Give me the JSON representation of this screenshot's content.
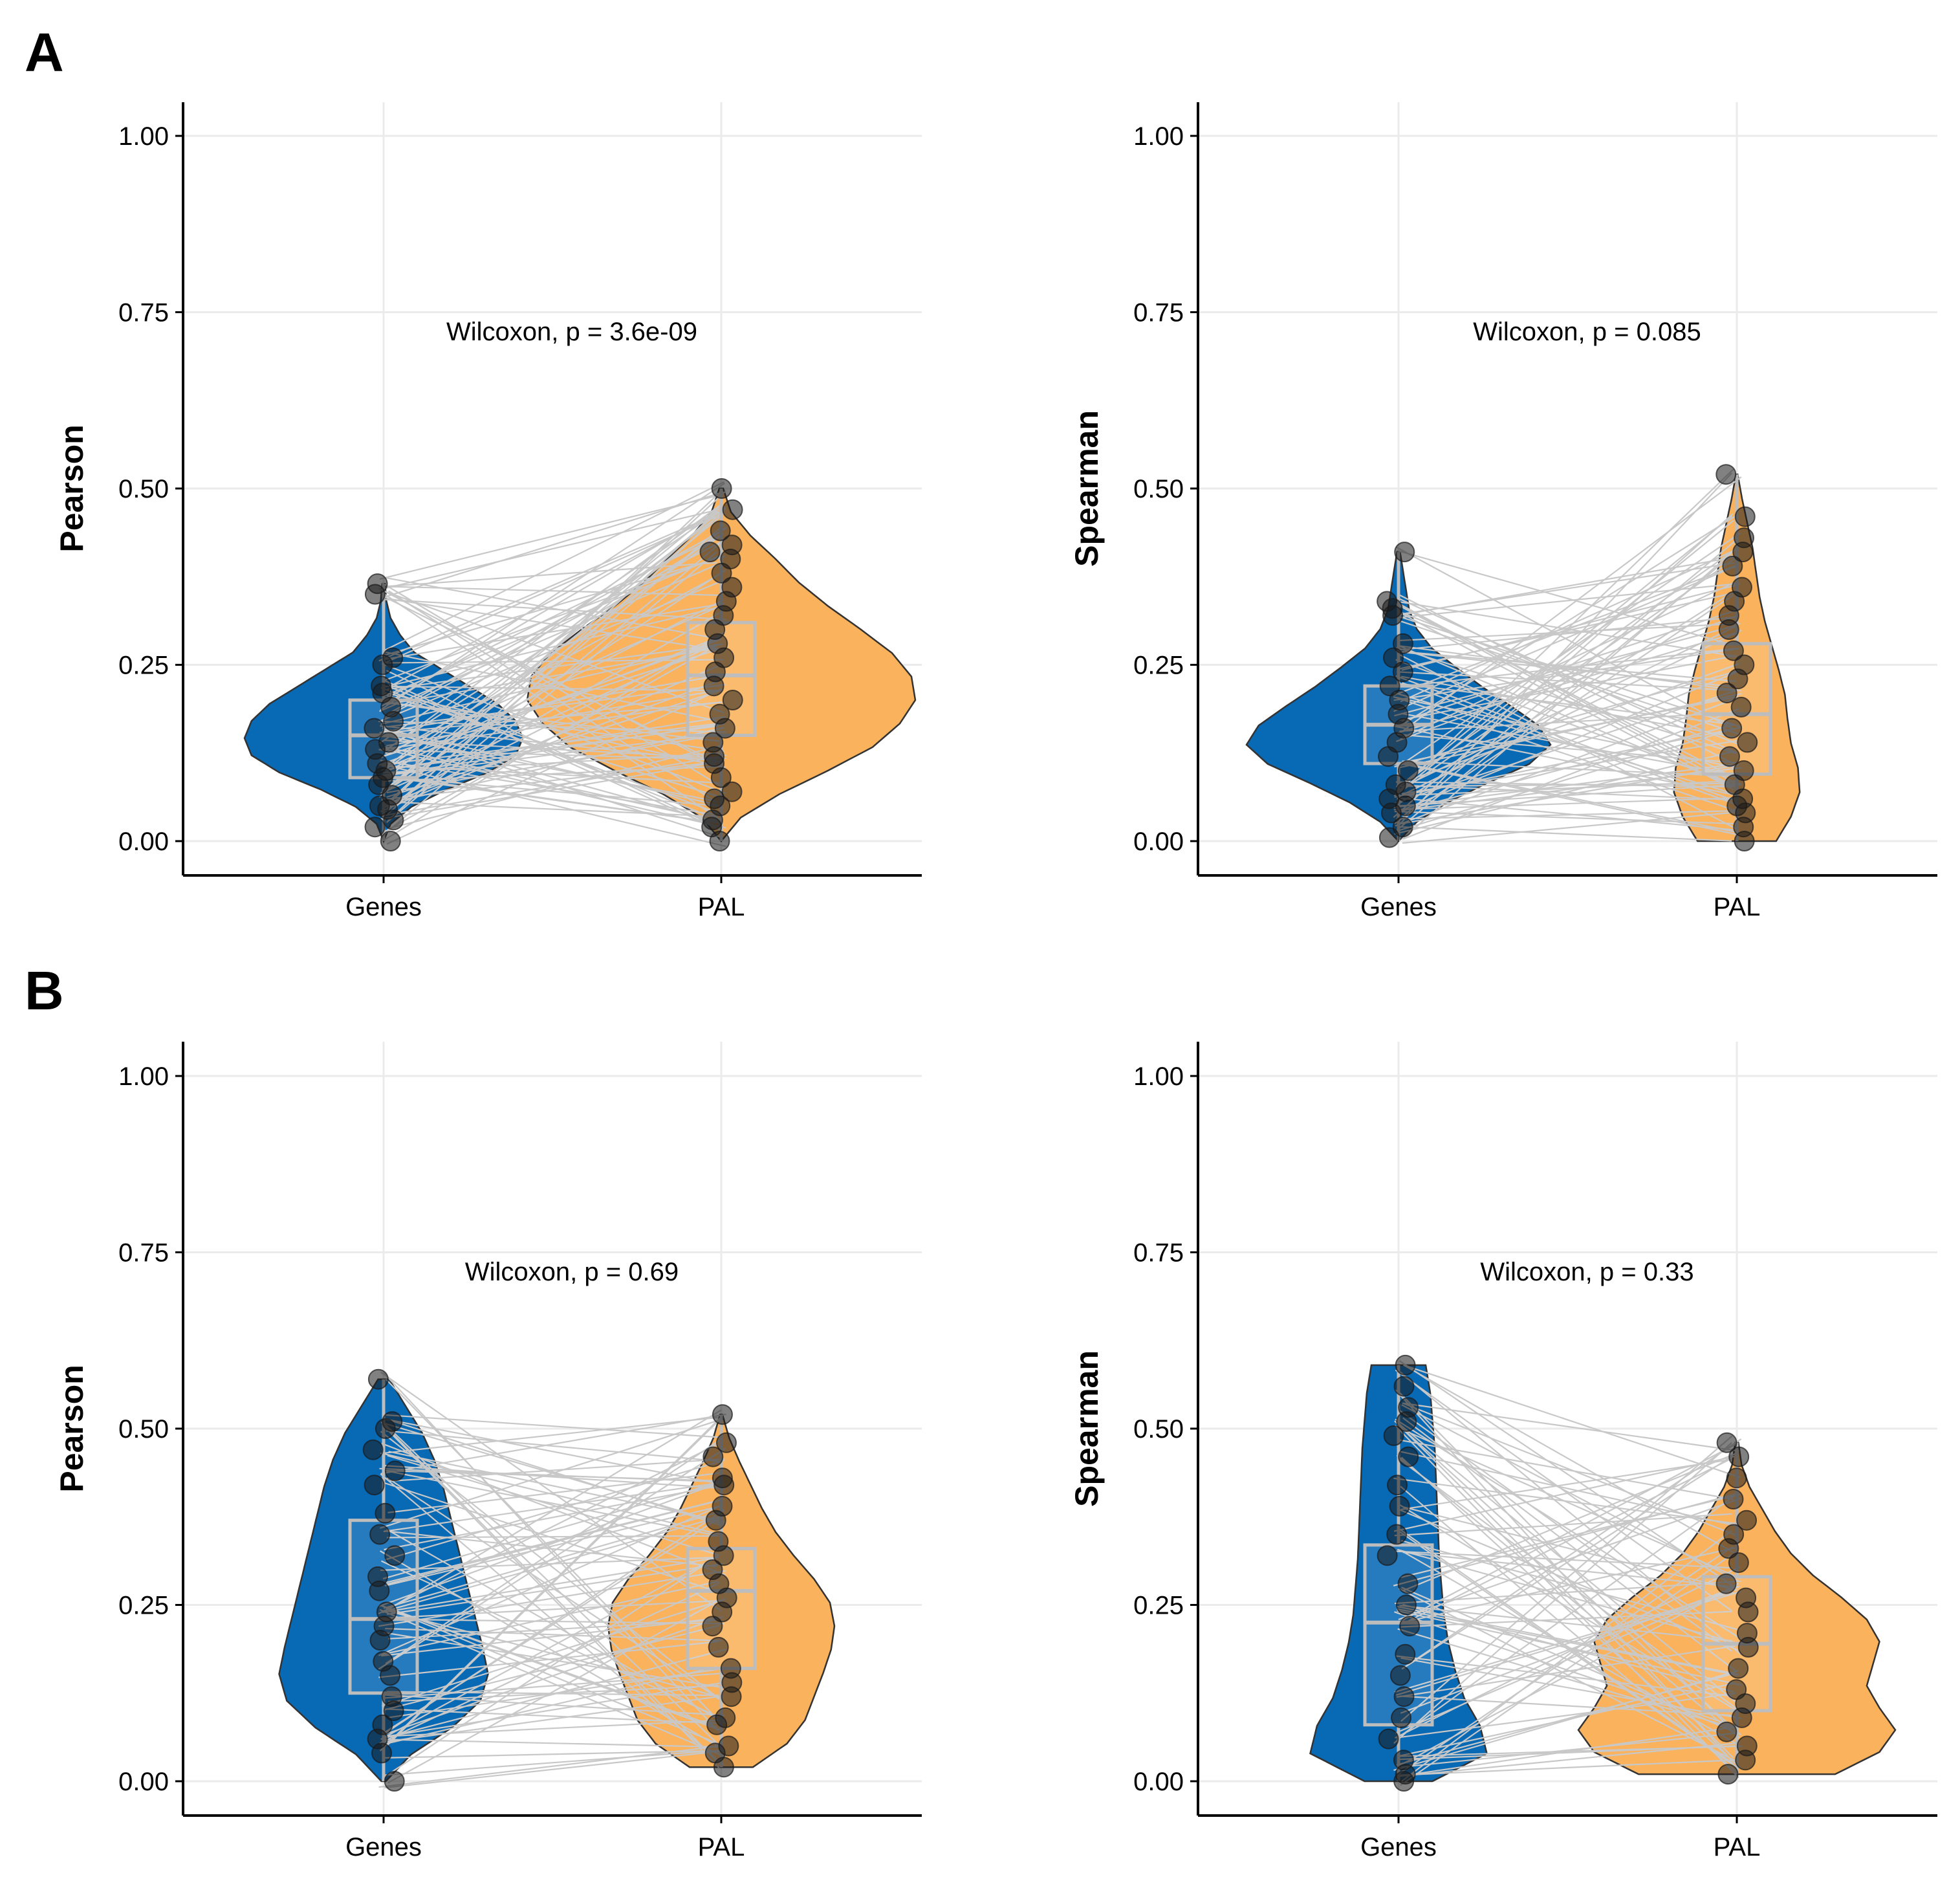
{
  "panel_labels": [
    "A",
    "B"
  ],
  "colors": {
    "genes": "#0869B5",
    "pal": "#FBB25C",
    "outline": "#333333",
    "grid": "#EBEBEB",
    "pair_line": "#C8C8C8",
    "box": "#BDBDBD",
    "point": "#1A1A1A"
  },
  "chart_data": [
    {
      "panel": "A",
      "type": "violin",
      "ylabel": "Pearson",
      "annotation": "Wilcoxon, p = 3.6e-09",
      "categories": [
        "Genes",
        "PAL"
      ],
      "ylim": [
        0,
        1
      ],
      "yticks": [
        "0.00",
        "0.25",
        "0.50",
        "0.75",
        "1.00"
      ],
      "ytick_values": [
        0,
        0.25,
        0.5,
        0.75,
        1
      ],
      "groups": [
        {
          "name": "Genes",
          "box": {
            "q1": 0.09,
            "median": 0.15,
            "q3": 0.2
          },
          "range": [
            0.0,
            0.365
          ],
          "points": [
            0.365,
            0.35,
            0.26,
            0.25,
            0.22,
            0.21,
            0.19,
            0.17,
            0.16,
            0.14,
            0.13,
            0.11,
            0.1,
            0.09,
            0.08,
            0.065,
            0.05,
            0.045,
            0.03,
            0.02,
            0.0
          ]
        },
        {
          "name": "PAL",
          "box": {
            "q1": 0.15,
            "median": 0.235,
            "q3": 0.31
          },
          "range": [
            0.0,
            0.5
          ],
          "points": [
            0.5,
            0.47,
            0.44,
            0.42,
            0.41,
            0.4,
            0.38,
            0.36,
            0.34,
            0.32,
            0.3,
            0.28,
            0.26,
            0.24,
            0.22,
            0.2,
            0.18,
            0.16,
            0.14,
            0.12,
            0.11,
            0.09,
            0.07,
            0.06,
            0.05,
            0.03,
            0.02,
            0.0
          ]
        }
      ]
    },
    {
      "panel": "A",
      "type": "violin",
      "ylabel": "Spearman",
      "annotation": "Wilcoxon, p = 0.085",
      "categories": [
        "Genes",
        "PAL"
      ],
      "ylim": [
        0,
        1
      ],
      "yticks": [
        "0.00",
        "0.25",
        "0.50",
        "0.75",
        "1.00"
      ],
      "ytick_values": [
        0,
        0.25,
        0.5,
        0.75,
        1
      ],
      "groups": [
        {
          "name": "Genes",
          "box": {
            "q1": 0.11,
            "median": 0.165,
            "q3": 0.22
          },
          "range": [
            0.0,
            0.41
          ],
          "points": [
            0.41,
            0.34,
            0.33,
            0.32,
            0.28,
            0.26,
            0.24,
            0.22,
            0.2,
            0.18,
            0.16,
            0.14,
            0.12,
            0.1,
            0.08,
            0.07,
            0.06,
            0.05,
            0.04,
            0.02,
            0.005
          ]
        },
        {
          "name": "PAL",
          "box": {
            "q1": 0.095,
            "median": 0.18,
            "q3": 0.28
          },
          "range": [
            0.0,
            0.52
          ],
          "points": [
            0.52,
            0.46,
            0.43,
            0.41,
            0.39,
            0.36,
            0.34,
            0.32,
            0.3,
            0.27,
            0.25,
            0.23,
            0.21,
            0.19,
            0.16,
            0.14,
            0.12,
            0.1,
            0.08,
            0.06,
            0.05,
            0.04,
            0.02,
            0.0
          ]
        }
      ]
    },
    {
      "panel": "B",
      "type": "violin",
      "ylabel": "Pearson",
      "annotation": "Wilcoxon, p = 0.69",
      "categories": [
        "Genes",
        "PAL"
      ],
      "ylim": [
        0,
        1
      ],
      "yticks": [
        "0.00",
        "0.25",
        "0.50",
        "0.75",
        "1.00"
      ],
      "ytick_values": [
        0,
        0.25,
        0.5,
        0.75,
        1
      ],
      "groups": [
        {
          "name": "Genes",
          "box": {
            "q1": 0.125,
            "median": 0.23,
            "q3": 0.37
          },
          "range": [
            0.0,
            0.57
          ],
          "points": [
            0.57,
            0.51,
            0.5,
            0.47,
            0.44,
            0.42,
            0.38,
            0.35,
            0.32,
            0.29,
            0.27,
            0.24,
            0.22,
            0.2,
            0.17,
            0.15,
            0.12,
            0.1,
            0.08,
            0.06,
            0.04,
            0.0
          ]
        },
        {
          "name": "PAL",
          "box": {
            "q1": 0.16,
            "median": 0.27,
            "q3": 0.33
          },
          "range": [
            0.02,
            0.52
          ],
          "points": [
            0.52,
            0.48,
            0.46,
            0.43,
            0.42,
            0.39,
            0.37,
            0.34,
            0.32,
            0.3,
            0.28,
            0.26,
            0.24,
            0.22,
            0.19,
            0.16,
            0.14,
            0.12,
            0.09,
            0.08,
            0.05,
            0.04,
            0.02
          ]
        }
      ]
    },
    {
      "panel": "B",
      "type": "violin",
      "ylabel": "Spearman",
      "annotation": "Wilcoxon, p = 0.33",
      "categories": [
        "Genes",
        "PAL"
      ],
      "ylim": [
        0,
        1
      ],
      "yticks": [
        "0.00",
        "0.25",
        "0.50",
        "0.75",
        "1.00"
      ],
      "ytick_values": [
        0,
        0.25,
        0.5,
        0.75,
        1
      ],
      "groups": [
        {
          "name": "Genes",
          "box": {
            "q1": 0.08,
            "median": 0.225,
            "q3": 0.335
          },
          "range": [
            0.0,
            0.59
          ],
          "points": [
            0.59,
            0.56,
            0.53,
            0.51,
            0.49,
            0.46,
            0.42,
            0.39,
            0.35,
            0.32,
            0.28,
            0.25,
            0.22,
            0.18,
            0.15,
            0.12,
            0.09,
            0.06,
            0.03,
            0.01,
            0.0
          ]
        },
        {
          "name": "PAL",
          "box": {
            "q1": 0.1,
            "median": 0.195,
            "q3": 0.29
          },
          "range": [
            0.01,
            0.48
          ],
          "points": [
            0.48,
            0.46,
            0.43,
            0.4,
            0.37,
            0.35,
            0.33,
            0.31,
            0.28,
            0.26,
            0.24,
            0.21,
            0.19,
            0.16,
            0.13,
            0.11,
            0.09,
            0.07,
            0.05,
            0.03,
            0.01
          ]
        }
      ]
    }
  ]
}
